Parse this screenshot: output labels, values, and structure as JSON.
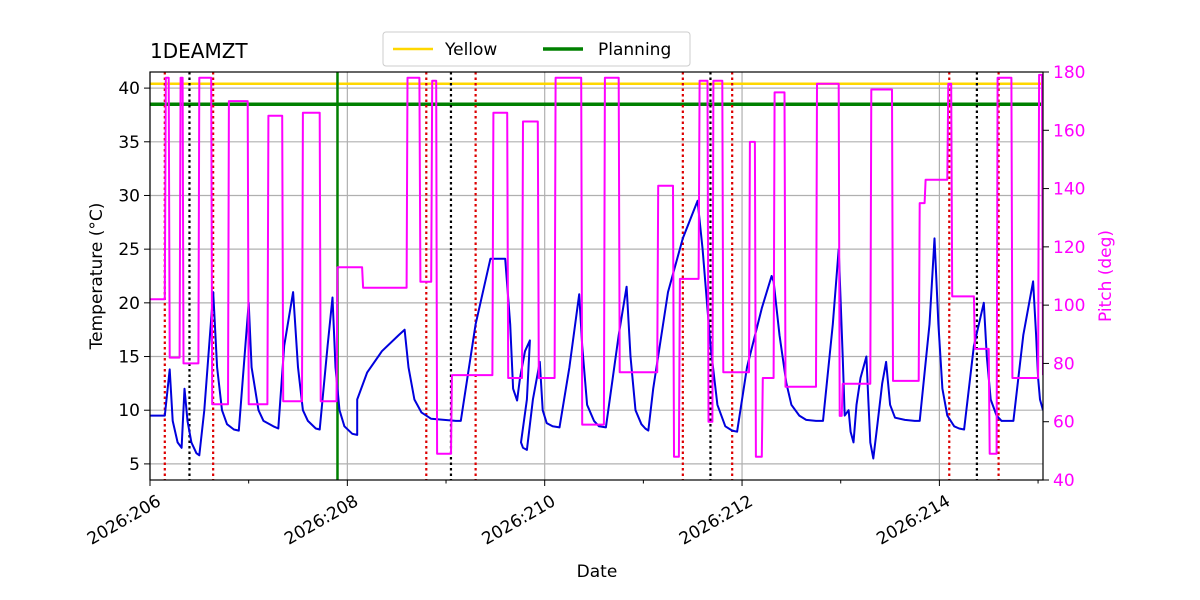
{
  "chart_data": {
    "type": "line",
    "title": "1DEAMZT",
    "xlabel": "Date",
    "ylabel": "Temperature ($^\\circ$C)",
    "ylabel_display": "Temperature (°C)",
    "y2label": "Pitch (deg)",
    "xlim": [
      206.0,
      215.05
    ],
    "ylim": [
      3.5,
      41.5
    ],
    "y2lim": [
      40,
      180
    ],
    "x_ticks": [
      206,
      208,
      210,
      212,
      214
    ],
    "x_tick_labels": [
      "2026:206",
      "2026:208",
      "2026:210",
      "2026:212",
      "2026:214"
    ],
    "y_ticks": [
      5,
      10,
      15,
      20,
      25,
      30,
      35,
      40
    ],
    "y_tick_labels": [
      "5",
      "10",
      "15",
      "20",
      "25",
      "30",
      "35",
      "40"
    ],
    "y2_ticks": [
      40,
      60,
      80,
      100,
      120,
      140,
      160,
      180
    ],
    "y2_tick_labels": [
      "40",
      "60",
      "80",
      "100",
      "120",
      "140",
      "160",
      "180"
    ],
    "grid": true,
    "legend_position": "top-center",
    "legend": [
      {
        "label": "Yellow",
        "color": "#ffd700"
      },
      {
        "label": "Planning",
        "color": "#008000"
      }
    ],
    "limits": {
      "yellow": 40.4,
      "planning": 38.5
    },
    "planning_vline_x": 207.9,
    "red_vlines_x": [
      206.15,
      206.64,
      208.8,
      209.3,
      211.4,
      211.9,
      214.1,
      214.6
    ],
    "black_vlines_x": [
      206.4,
      209.05,
      211.68,
      214.38
    ],
    "colors": {
      "temperature": "#0000dd",
      "pitch": "#ff00ff",
      "yellow": "#ffd700",
      "planning": "#008000",
      "red_lines": "#dd0000",
      "black_lines": "#000000",
      "grid": "#b0b0b0"
    },
    "series": [
      {
        "name": "Temperature",
        "axis": "left",
        "points": [
          [
            206.0,
            9.5
          ],
          [
            206.15,
            9.5
          ],
          [
            206.2,
            13.8
          ],
          [
            206.23,
            9.0
          ],
          [
            206.28,
            7.0
          ],
          [
            206.32,
            6.5
          ],
          [
            206.35,
            12.0
          ],
          [
            206.38,
            9.0
          ],
          [
            206.42,
            7.0
          ],
          [
            206.47,
            6.0
          ],
          [
            206.5,
            5.8
          ],
          [
            206.55,
            10.0
          ],
          [
            206.64,
            21.0
          ],
          [
            206.68,
            14.0
          ],
          [
            206.73,
            10.0
          ],
          [
            206.78,
            8.7
          ],
          [
            206.85,
            8.2
          ],
          [
            206.9,
            8.1
          ],
          [
            207.0,
            20.0
          ],
          [
            207.03,
            14.0
          ],
          [
            207.1,
            10.0
          ],
          [
            207.15,
            9.0
          ],
          [
            207.25,
            8.5
          ],
          [
            207.3,
            8.3
          ],
          [
            207.36,
            16.0
          ],
          [
            207.45,
            21.0
          ],
          [
            207.5,
            14.0
          ],
          [
            207.55,
            10.0
          ],
          [
            207.6,
            9.0
          ],
          [
            207.68,
            8.3
          ],
          [
            207.72,
            8.2
          ],
          [
            207.8,
            16.0
          ],
          [
            207.85,
            20.5
          ],
          [
            207.88,
            14.0
          ],
          [
            207.92,
            10.0
          ],
          [
            207.97,
            8.5
          ],
          [
            208.05,
            7.8
          ],
          [
            208.1,
            7.7
          ],
          [
            208.1,
            11.0
          ],
          [
            208.2,
            13.5
          ],
          [
            208.35,
            15.5
          ],
          [
            208.52,
            17.0
          ],
          [
            208.58,
            17.5
          ],
          [
            208.62,
            14.0
          ],
          [
            208.68,
            11.0
          ],
          [
            208.75,
            9.8
          ],
          [
            208.85,
            9.2
          ],
          [
            209.1,
            9.0
          ],
          [
            209.15,
            9.0
          ],
          [
            209.3,
            18.0
          ],
          [
            209.45,
            24.1
          ],
          [
            209.6,
            24.1
          ],
          [
            209.65,
            18.0
          ],
          [
            209.68,
            12.0
          ],
          [
            209.72,
            10.9
          ],
          [
            209.75,
            13.0
          ],
          [
            209.8,
            15.5
          ],
          [
            209.85,
            16.5
          ],
          [
            209.82,
            11.0
          ],
          [
            209.76,
            7.0
          ],
          [
            209.78,
            6.5
          ],
          [
            209.82,
            6.3
          ],
          [
            209.88,
            11.0
          ],
          [
            209.95,
            14.5
          ],
          [
            209.98,
            10.0
          ],
          [
            210.02,
            8.8
          ],
          [
            210.08,
            8.5
          ],
          [
            210.15,
            8.4
          ],
          [
            210.25,
            14.0
          ],
          [
            210.35,
            20.8
          ],
          [
            210.38,
            16.0
          ],
          [
            210.43,
            10.5
          ],
          [
            210.5,
            9.0
          ],
          [
            210.55,
            8.5
          ],
          [
            210.62,
            8.4
          ],
          [
            210.75,
            17.0
          ],
          [
            210.83,
            21.5
          ],
          [
            210.87,
            15.0
          ],
          [
            210.92,
            10.0
          ],
          [
            210.98,
            8.7
          ],
          [
            211.02,
            8.3
          ],
          [
            211.05,
            8.1
          ],
          [
            211.1,
            12.0
          ],
          [
            211.25,
            21.0
          ],
          [
            211.4,
            26.0
          ],
          [
            211.55,
            29.5
          ],
          [
            211.6,
            25.0
          ],
          [
            211.68,
            16.0
          ],
          [
            211.75,
            10.5
          ],
          [
            211.83,
            8.5
          ],
          [
            211.9,
            8.1
          ],
          [
            211.95,
            8.0
          ],
          [
            212.05,
            14.0
          ],
          [
            212.2,
            19.5
          ],
          [
            212.3,
            22.5
          ],
          [
            212.32,
            22.0
          ],
          [
            212.38,
            17.0
          ],
          [
            212.45,
            12.5
          ],
          [
            212.5,
            10.5
          ],
          [
            212.58,
            9.5
          ],
          [
            212.65,
            9.1
          ],
          [
            212.75,
            9.0
          ],
          [
            212.82,
            9.0
          ],
          [
            212.92,
            18.0
          ],
          [
            212.98,
            25.0
          ],
          [
            213.0,
            20.0
          ],
          [
            213.02,
            15.0
          ],
          [
            213.04,
            9.5
          ],
          [
            213.08,
            10.0
          ],
          [
            213.1,
            8.0
          ],
          [
            213.13,
            7.0
          ],
          [
            213.16,
            10.5
          ],
          [
            213.2,
            13.0
          ],
          [
            213.26,
            15.0
          ],
          [
            213.28,
            11.0
          ],
          [
            213.3,
            7.0
          ],
          [
            213.33,
            5.5
          ],
          [
            213.37,
            8.5
          ],
          [
            213.42,
            12.5
          ],
          [
            213.46,
            14.5
          ],
          [
            213.5,
            10.5
          ],
          [
            213.55,
            9.3
          ],
          [
            213.65,
            9.1
          ],
          [
            213.75,
            9.0
          ],
          [
            213.8,
            9.0
          ],
          [
            213.9,
            18.0
          ],
          [
            213.95,
            26.0
          ],
          [
            213.99,
            18.0
          ],
          [
            214.03,
            12.0
          ],
          [
            214.08,
            9.5
          ],
          [
            214.15,
            8.5
          ],
          [
            214.2,
            8.3
          ],
          [
            214.25,
            8.2
          ],
          [
            214.35,
            16.0
          ],
          [
            214.45,
            20.0
          ],
          [
            214.48,
            15.0
          ],
          [
            214.52,
            11.0
          ],
          [
            214.58,
            9.5
          ],
          [
            214.63,
            9.0
          ],
          [
            214.7,
            9.0
          ],
          [
            214.75,
            9.0
          ],
          [
            214.85,
            17.0
          ],
          [
            214.95,
            22.0
          ],
          [
            214.98,
            17.0
          ],
          [
            215.0,
            13.0
          ],
          [
            215.02,
            11.0
          ],
          [
            215.05,
            10.0
          ]
        ]
      },
      {
        "name": "Pitch",
        "axis": "right",
        "points": [
          [
            206.0,
            102
          ],
          [
            206.15,
            102
          ],
          [
            206.16,
            178
          ],
          [
            206.19,
            178
          ],
          [
            206.2,
            82
          ],
          [
            206.3,
            82
          ],
          [
            206.31,
            178
          ],
          [
            206.33,
            178
          ],
          [
            206.34,
            80
          ],
          [
            206.49,
            80
          ],
          [
            206.5,
            178
          ],
          [
            206.62,
            178
          ],
          [
            206.63,
            66
          ],
          [
            206.79,
            66
          ],
          [
            206.8,
            170
          ],
          [
            206.99,
            170
          ],
          [
            207.0,
            66
          ],
          [
            207.19,
            66
          ],
          [
            207.2,
            165
          ],
          [
            207.34,
            165
          ],
          [
            207.35,
            67
          ],
          [
            207.54,
            67
          ],
          [
            207.55,
            166
          ],
          [
            207.72,
            166
          ],
          [
            207.73,
            67
          ],
          [
            207.89,
            67
          ],
          [
            207.9,
            113
          ],
          [
            208.15,
            113
          ],
          [
            208.16,
            106
          ],
          [
            208.6,
            106
          ],
          [
            208.61,
            178
          ],
          [
            208.73,
            178
          ],
          [
            208.74,
            108
          ],
          [
            208.85,
            108
          ],
          [
            208.86,
            177
          ],
          [
            208.9,
            177
          ],
          [
            208.91,
            49
          ],
          [
            209.05,
            49
          ],
          [
            209.06,
            76
          ],
          [
            209.47,
            76
          ],
          [
            209.48,
            166
          ],
          [
            209.62,
            166
          ],
          [
            209.63,
            75
          ],
          [
            209.77,
            75
          ],
          [
            209.78,
            163
          ],
          [
            209.93,
            163
          ],
          [
            209.94,
            75
          ],
          [
            210.1,
            75
          ],
          [
            210.11,
            178
          ],
          [
            210.37,
            178
          ],
          [
            210.38,
            59
          ],
          [
            210.6,
            59
          ],
          [
            210.61,
            178
          ],
          [
            210.75,
            178
          ],
          [
            210.76,
            77
          ],
          [
            211.14,
            77
          ],
          [
            211.15,
            141
          ],
          [
            211.3,
            141
          ],
          [
            211.31,
            48
          ],
          [
            211.36,
            48
          ],
          [
            211.37,
            109
          ],
          [
            211.56,
            109
          ],
          [
            211.57,
            177
          ],
          [
            211.65,
            177
          ],
          [
            211.66,
            60
          ],
          [
            211.7,
            60
          ],
          [
            211.71,
            177
          ],
          [
            211.8,
            177
          ],
          [
            211.81,
            77
          ],
          [
            212.07,
            77
          ],
          [
            212.08,
            156
          ],
          [
            212.13,
            156
          ],
          [
            212.14,
            48
          ],
          [
            212.2,
            48
          ],
          [
            212.21,
            75
          ],
          [
            212.32,
            75
          ],
          [
            212.33,
            173
          ],
          [
            212.43,
            173
          ],
          [
            212.44,
            72
          ],
          [
            212.75,
            72
          ],
          [
            212.76,
            176
          ],
          [
            212.98,
            176
          ],
          [
            212.99,
            62
          ],
          [
            213.01,
            62
          ],
          [
            213.02,
            73
          ],
          [
            213.3,
            73
          ],
          [
            213.31,
            174
          ],
          [
            213.52,
            174
          ],
          [
            213.53,
            74
          ],
          [
            213.79,
            74
          ],
          [
            213.8,
            135
          ],
          [
            213.85,
            135
          ],
          [
            213.86,
            143
          ],
          [
            214.08,
            143
          ],
          [
            214.09,
            176
          ],
          [
            214.12,
            176
          ],
          [
            214.13,
            103
          ],
          [
            214.35,
            103
          ],
          [
            214.36,
            85
          ],
          [
            214.5,
            85
          ],
          [
            214.51,
            49
          ],
          [
            214.58,
            49
          ],
          [
            214.59,
            178
          ],
          [
            214.73,
            178
          ],
          [
            214.74,
            75
          ],
          [
            215.0,
            75
          ],
          [
            215.01,
            179
          ],
          [
            215.04,
            179
          ],
          [
            215.05,
            76
          ]
        ]
      }
    ]
  }
}
